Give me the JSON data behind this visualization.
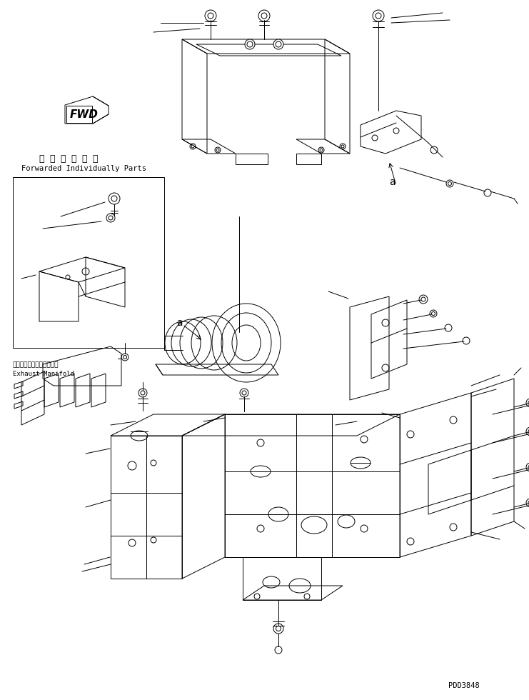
{
  "bg": "#ffffff",
  "lc": "#000000",
  "code": "PDD3848",
  "fwd": "FWD",
  "jp1": "単 品 発 送 部 品",
  "en1": "Forwarded Individually Parts",
  "exjp": "エキゾーストマニホールド",
  "exen": "Exhaust Manifold",
  "la": "a"
}
